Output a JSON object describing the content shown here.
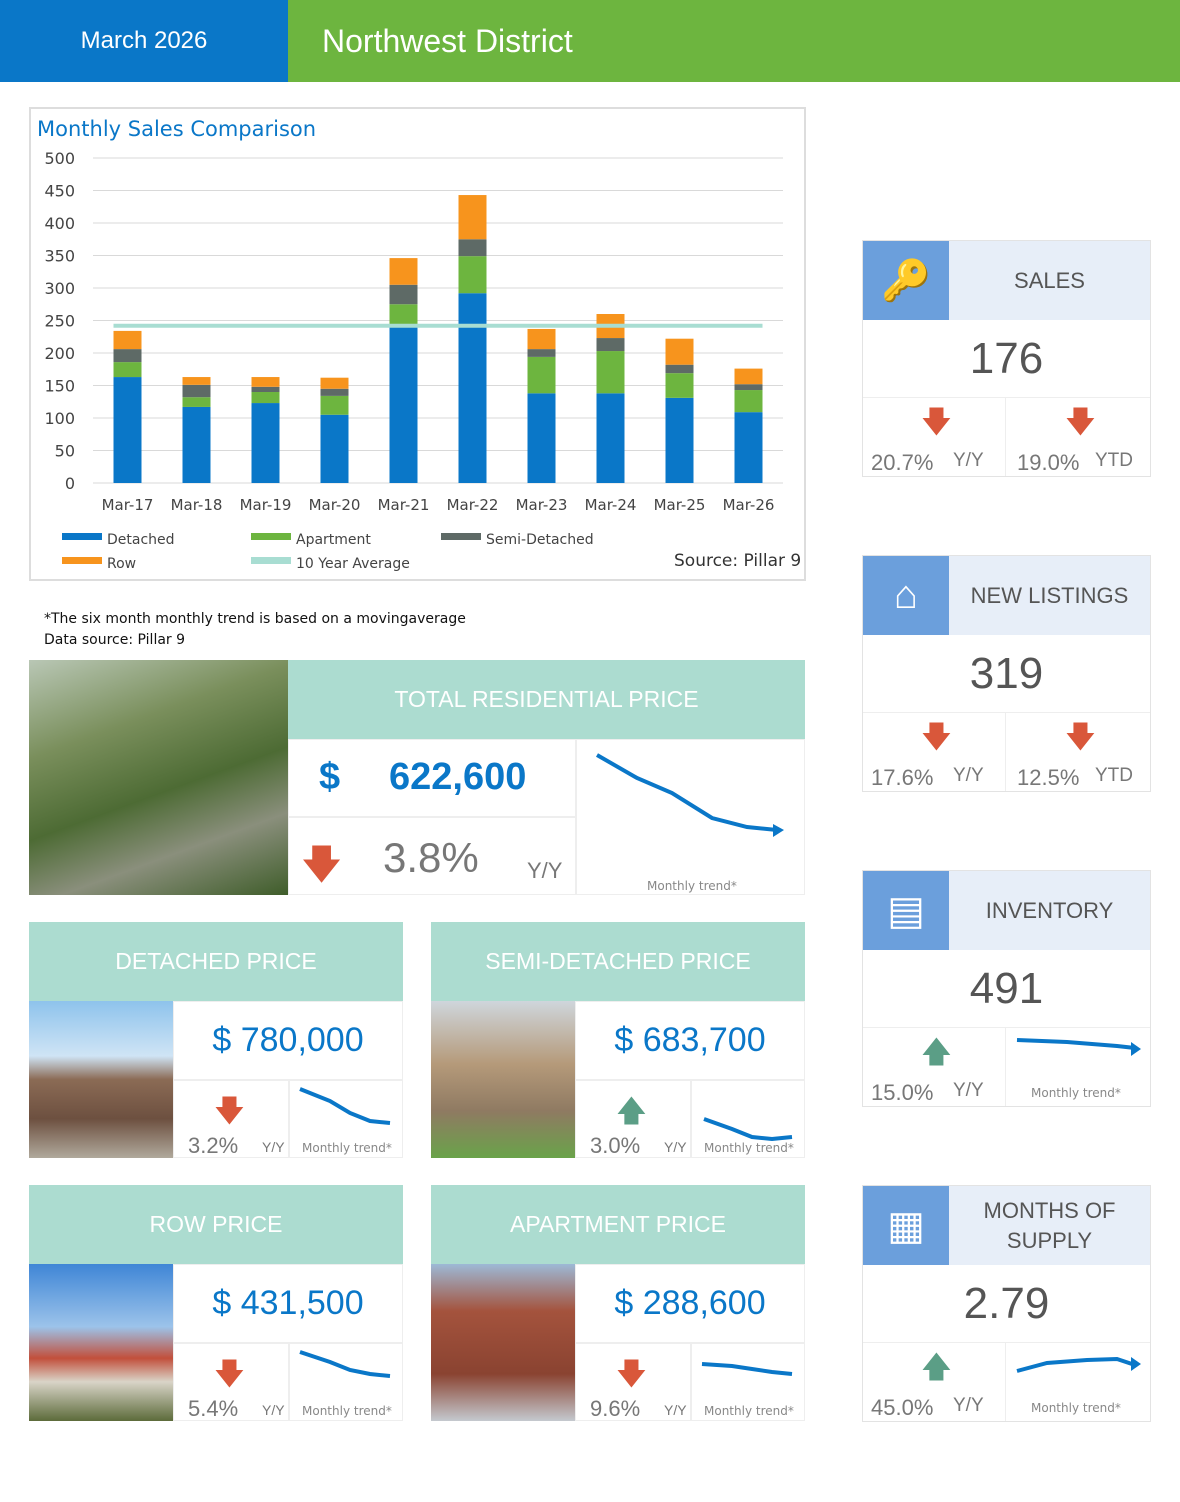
{
  "header": {
    "date": "March 2026",
    "district": "Northwest District"
  },
  "chart_data": {
    "type": "bar",
    "stacked": true,
    "title": "Monthly Sales Comparison",
    "categories": [
      "Mar-17",
      "Mar-18",
      "Mar-19",
      "Mar-20",
      "Mar-21",
      "Mar-22",
      "Mar-23",
      "Mar-24",
      "Mar-25",
      "Mar-26"
    ],
    "series": [
      {
        "name": "Detached",
        "color": "#0a77c8",
        "values": [
          163,
          117,
          123,
          105,
          243,
          292,
          138,
          138,
          131,
          109
        ]
      },
      {
        "name": "Apartment",
        "color": "#6db53f",
        "values": [
          23,
          15,
          17,
          29,
          32,
          57,
          56,
          65,
          38,
          34
        ]
      },
      {
        "name": "Semi-Detached",
        "color": "#5e6a66",
        "values": [
          20,
          19,
          8,
          11,
          30,
          26,
          12,
          20,
          13,
          9
        ]
      },
      {
        "name": "Row",
        "color": "#f7941d",
        "values": [
          28,
          12,
          15,
          17,
          41,
          68,
          31,
          37,
          40,
          24
        ]
      }
    ],
    "average": {
      "name": "10 Year Average",
      "color": "#a8ddd2",
      "value": 242
    },
    "yticks": [
      "0",
      "50",
      "100",
      "150",
      "200",
      "250",
      "300",
      "350",
      "400",
      "450",
      "500"
    ],
    "ylim": [
      0,
      500
    ],
    "grid": true,
    "legend": "bottom",
    "source": "Source: Pillar 9"
  },
  "notes": {
    "line1": "*The six month monthly trend is based on a movingaverage",
    "line2": "Data source: Pillar 9"
  },
  "total": {
    "title": "TOTAL RESIDENTIAL PRICE",
    "currency": "$",
    "price": "622,600",
    "change": "3.8%",
    "change_label": "Y/Y",
    "trend_label": "Monthly trend*"
  },
  "detached": {
    "title": "DETACHED PRICE",
    "price": "$ 780,000",
    "change": "3.2%",
    "change_label": "Y/Y",
    "trend_label": "Monthly trend*"
  },
  "semi": {
    "title": "SEMI-DETACHED PRICE",
    "price": "$ 683,700",
    "change": "3.0%",
    "change_label": "Y/Y",
    "trend_label": "Monthly trend*"
  },
  "row": {
    "title": "ROW PRICE",
    "price": "$ 431,500",
    "change": "5.4%",
    "change_label": "Y/Y",
    "trend_label": "Monthly trend*"
  },
  "apartment": {
    "title": "APARTMENT PRICE",
    "price": "$ 288,600",
    "change": "9.6%",
    "change_label": "Y/Y",
    "trend_label": "Monthly trend*"
  },
  "sales": {
    "title": "SALES",
    "value": "176",
    "yy": "20.7%",
    "yy_label": "Y/Y",
    "ytd": "19.0%",
    "ytd_label": "YTD"
  },
  "new_listings": {
    "title": "NEW LISTINGS",
    "value": "319",
    "yy": "17.6%",
    "yy_label": "Y/Y",
    "ytd": "12.5%",
    "ytd_label": "YTD"
  },
  "inventory": {
    "title": "INVENTORY",
    "value": "491",
    "yy": "15.0%",
    "yy_label": "Y/Y",
    "trend_label": "Monthly trend*"
  },
  "months_supply": {
    "title": "MONTHS OF SUPPLY",
    "value": "2.79",
    "yy": "45.0%",
    "yy_label": "Y/Y",
    "trend_label": "Monthly trend*"
  }
}
